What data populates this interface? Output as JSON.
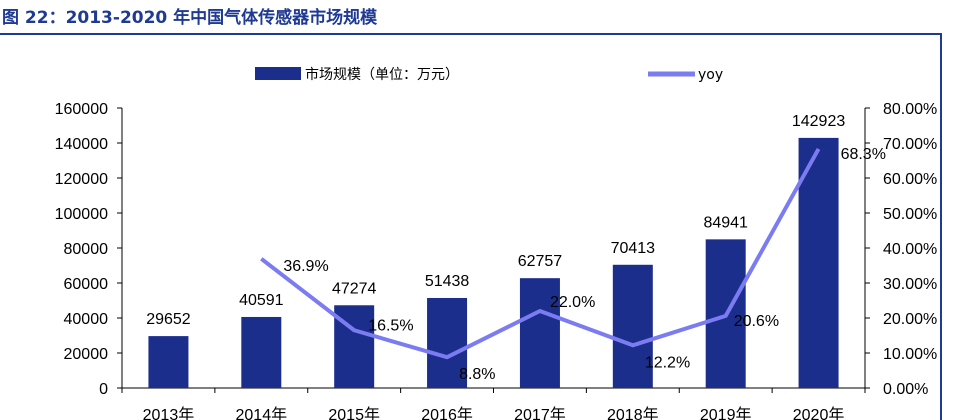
{
  "title": "图 22：2013-2020 年中国气体传感器市场规模",
  "chart_data": {
    "type": "bar",
    "categories": [
      "2013年",
      "2014年",
      "2015年",
      "2016年",
      "2017年",
      "2018年",
      "2019年",
      "2020年"
    ],
    "series": [
      {
        "name": "市场规模（单位：万元）",
        "type": "bar",
        "axis": "left",
        "color": "#1c2e8c",
        "values": [
          29652,
          40591,
          47274,
          51438,
          62757,
          70413,
          84941,
          142923
        ]
      },
      {
        "name": "yoy",
        "type": "line",
        "axis": "right",
        "color": "#7b7bf2",
        "values": [
          null,
          36.9,
          16.5,
          8.8,
          22.0,
          12.2,
          20.6,
          68.3
        ]
      }
    ],
    "bar_labels": [
      "29652",
      "40591",
      "47274",
      "51438",
      "62757",
      "70413",
      "84941",
      "142923"
    ],
    "line_labels": [
      "",
      "36.9%",
      "16.5%",
      "8.8%",
      "22.0%",
      "12.2%",
      "20.6%",
      "68.3%"
    ],
    "y_left": {
      "ylim": [
        0,
        160000
      ],
      "ticks": [
        "0",
        "20000",
        "40000",
        "60000",
        "80000",
        "100000",
        "120000",
        "140000",
        "160000"
      ]
    },
    "y_right": {
      "ylim": [
        0,
        80
      ],
      "ticks": [
        "0.00%",
        "10.00%",
        "20.00%",
        "30.00%",
        "40.00%",
        "50.00%",
        "60.00%",
        "70.00%",
        "80.00%"
      ]
    },
    "legend_position": "top",
    "grid": false
  }
}
